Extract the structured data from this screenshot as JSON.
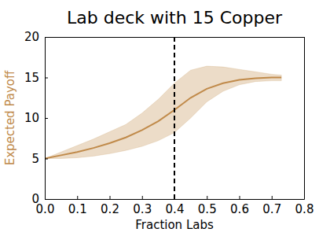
{
  "chart_data": {
    "type": "line",
    "title": "Lab deck with 15 Copper",
    "x_label": "Fraction Labs",
    "y_label": "Expected Payoff",
    "x": [
      0,
      0.05,
      0.1,
      0.15,
      0.2,
      0.25,
      0.3,
      0.35,
      0.4,
      0.45,
      0.5,
      0.55,
      0.6,
      0.65,
      0.7,
      0.73
    ],
    "series": [
      {
        "color": "#c08a4a",
        "values": [
          5.0,
          5.4,
          5.8,
          6.3,
          6.9,
          7.6,
          8.5,
          9.6,
          11.0,
          12.5,
          13.6,
          14.3,
          14.7,
          14.9,
          15.0,
          15.0
        ],
        "lower": [
          5.0,
          5.0,
          5.1,
          5.3,
          5.6,
          6.0,
          6.5,
          7.2,
          8.2,
          10.0,
          12.0,
          13.3,
          14.1,
          14.5,
          14.6,
          14.6
        ],
        "upper": [
          5.0,
          5.8,
          6.6,
          7.4,
          8.3,
          9.2,
          10.6,
          12.3,
          14.3,
          15.9,
          16.4,
          16.3,
          16.0,
          15.7,
          15.4,
          15.3
        ]
      }
    ],
    "vline": 0.4,
    "line_style": "dashed",
    "xlim": [
      0,
      0.8
    ],
    "xticks": [
      {
        "value": 0,
        "label": "0.0"
      },
      0.1,
      0.2,
      0.3,
      0.4,
      0.5,
      0.6,
      0.7,
      0.8
    ],
    "ylim": [
      0,
      20
    ],
    "yticks": [
      0,
      5,
      10,
      15,
      20
    ],
    "grid": false
  }
}
